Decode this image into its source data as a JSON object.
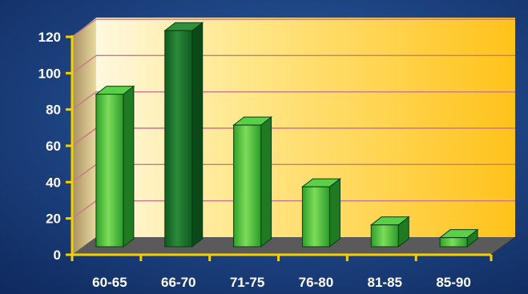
{
  "chart_data": {
    "type": "bar",
    "title": "",
    "xlabel": "",
    "ylabel": "",
    "categories": [
      "60-65",
      "66-70",
      "71-75",
      "76-80",
      "81-85",
      "85-90"
    ],
    "values": [
      84,
      119,
      67,
      33,
      12,
      5
    ],
    "ylim": [
      0,
      120
    ],
    "yticks": [
      0,
      20,
      40,
      60,
      80,
      100,
      120
    ],
    "grid": true,
    "legend": "none",
    "style": "3d",
    "colors": {
      "background": "#1b3f7e",
      "wall": "#ffd84a",
      "floor": "#5a5a5a",
      "bar_light": "#3fbf3a",
      "bar_dark": "#1a7a2e",
      "axis": "#f5d000",
      "gridline": "#c8788a",
      "label": "#ffffff"
    }
  }
}
